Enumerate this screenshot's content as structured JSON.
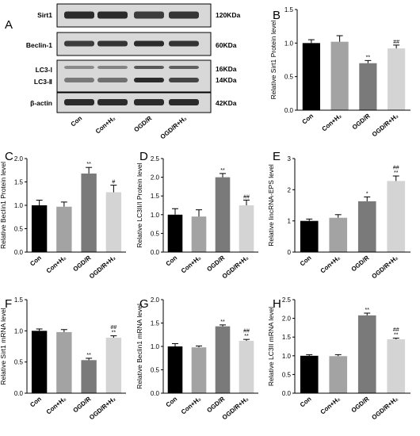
{
  "panel_letters": [
    "A",
    "B",
    "C",
    "D",
    "E",
    "F",
    "G",
    "H"
  ],
  "western_blot": {
    "bands": [
      {
        "label": "Sirt1",
        "size": "120KDa"
      },
      {
        "label": "Beclin-1",
        "size": "60KDa"
      },
      {
        "label": "LC3-Ⅰ",
        "size": "16KDa"
      },
      {
        "label": "LC3-Ⅱ",
        "size": "14KDa"
      },
      {
        "label": "β-actin",
        "size": "42KDa"
      }
    ],
    "lanes": [
      "Con",
      "Con+H₂",
      "OGD/R",
      "OGD/R+H₂"
    ]
  },
  "colors": {
    "bars": [
      "#000000",
      "#a3a3a3",
      "#7a7a7a",
      "#d4d4d4"
    ],
    "blot_bg": "#d8d8d8",
    "band": "#2b2b2b"
  },
  "chart_data": [
    {
      "panel": "B",
      "type": "bar",
      "categories": [
        "Con",
        "Con+H₂",
        "OGD/R",
        "OGD/R+H₂"
      ],
      "values": [
        1.0,
        1.02,
        0.7,
        0.92
      ],
      "errors": [
        0.05,
        0.09,
        0.04,
        0.05
      ],
      "significance": [
        "",
        "",
        "**",
        "##"
      ],
      "ylabel": "Relative Sirt1 Protein level",
      "ylim": [
        0,
        1.5
      ],
      "yticks": [
        0,
        0.5,
        1.0,
        1.5
      ],
      "ytick_labels": [
        "0.0",
        "0.5",
        "1.0",
        "1.5"
      ]
    },
    {
      "panel": "C",
      "type": "bar",
      "categories": [
        "Con",
        "Con+H₂",
        "OGD/R",
        "OGD/R+H₂"
      ],
      "values": [
        1.0,
        0.97,
        1.68,
        1.28
      ],
      "errors": [
        0.11,
        0.1,
        0.13,
        0.15
      ],
      "significance": [
        "",
        "",
        "**",
        "#"
      ],
      "ylabel": "Relative Beclin1 Protein level",
      "ylim": [
        0,
        2.0
      ],
      "yticks": [
        0,
        0.5,
        1.0,
        1.5,
        2.0
      ],
      "ytick_labels": [
        "0.0",
        "0.5",
        "1.0",
        "1.5",
        "2.0"
      ]
    },
    {
      "panel": "D",
      "type": "bar",
      "categories": [
        "Con",
        "Con+H₂",
        "OGD/R",
        "OGD/R+H₂"
      ],
      "values": [
        1.0,
        0.95,
        2.0,
        1.25
      ],
      "errors": [
        0.16,
        0.18,
        0.1,
        0.14
      ],
      "significance": [
        "",
        "",
        "**",
        "##"
      ],
      "ylabel": "Relative LC3II/I Protein level",
      "ylim": [
        0,
        2.5
      ],
      "yticks": [
        0,
        0.5,
        1.0,
        1.5,
        2.0,
        2.5
      ],
      "ytick_labels": [
        "0.0",
        "0.5",
        "1.0",
        "1.5",
        "2.0",
        "2.5"
      ]
    },
    {
      "panel": "E",
      "type": "bar",
      "categories": [
        "Con",
        "Con+H₂",
        "OGD/R",
        "OGD/R+H₂"
      ],
      "values": [
        1.0,
        1.1,
        1.63,
        2.28
      ],
      "errors": [
        0.06,
        0.1,
        0.14,
        0.16
      ],
      "significance": [
        "",
        "",
        "*",
        "##\n**"
      ],
      "ylabel": "Relative lincRNA-EPS level",
      "ylim": [
        0,
        3
      ],
      "yticks": [
        0,
        1,
        2,
        3
      ],
      "ytick_labels": [
        "0",
        "1",
        "2",
        "3"
      ]
    },
    {
      "panel": "F",
      "type": "bar",
      "categories": [
        "Con",
        "Con+H₂",
        "OGD/R",
        "OGD/R+H₂"
      ],
      "values": [
        1.0,
        0.98,
        0.53,
        0.89
      ],
      "errors": [
        0.03,
        0.04,
        0.03,
        0.03
      ],
      "significance": [
        "",
        "",
        "**",
        "##\n**"
      ],
      "ylabel": "Relative Sirt1 mRNA level",
      "ylim": [
        0,
        1.5
      ],
      "yticks": [
        0,
        0.5,
        1.0,
        1.5
      ],
      "ytick_labels": [
        "0.0",
        "0.5",
        "1.0",
        "1.5"
      ]
    },
    {
      "panel": "G",
      "type": "bar",
      "categories": [
        "Con",
        "Con+H₂",
        "OGD/R",
        "OGD/R+H₂"
      ],
      "values": [
        1.0,
        0.98,
        1.43,
        1.12
      ],
      "errors": [
        0.06,
        0.03,
        0.03,
        0.03
      ],
      "significance": [
        "",
        "",
        "**",
        "##\n**"
      ],
      "ylabel": "Relative Beclin1 mRNA level",
      "ylim": [
        0,
        2.0
      ],
      "yticks": [
        0,
        0.5,
        1.0,
        1.5,
        2.0
      ],
      "ytick_labels": [
        "0.0",
        "0.5",
        "1.0",
        "1.5",
        "2.0"
      ]
    },
    {
      "panel": "H",
      "type": "bar",
      "categories": [
        "Con",
        "Con+H₂",
        "OGD/R",
        "OGD/R+H₂"
      ],
      "values": [
        1.0,
        0.99,
        2.08,
        1.44
      ],
      "errors": [
        0.03,
        0.04,
        0.06,
        0.03
      ],
      "significance": [
        "",
        "",
        "**",
        "##\n**"
      ],
      "ylabel": "Relative LC3II mRNA level",
      "ylim": [
        0,
        2.5
      ],
      "yticks": [
        0,
        0.5,
        1.0,
        1.5,
        2.0,
        2.5
      ],
      "ytick_labels": [
        "0.0",
        "0.5",
        "1.0",
        "1.5",
        "2.0",
        "2.5"
      ]
    }
  ]
}
